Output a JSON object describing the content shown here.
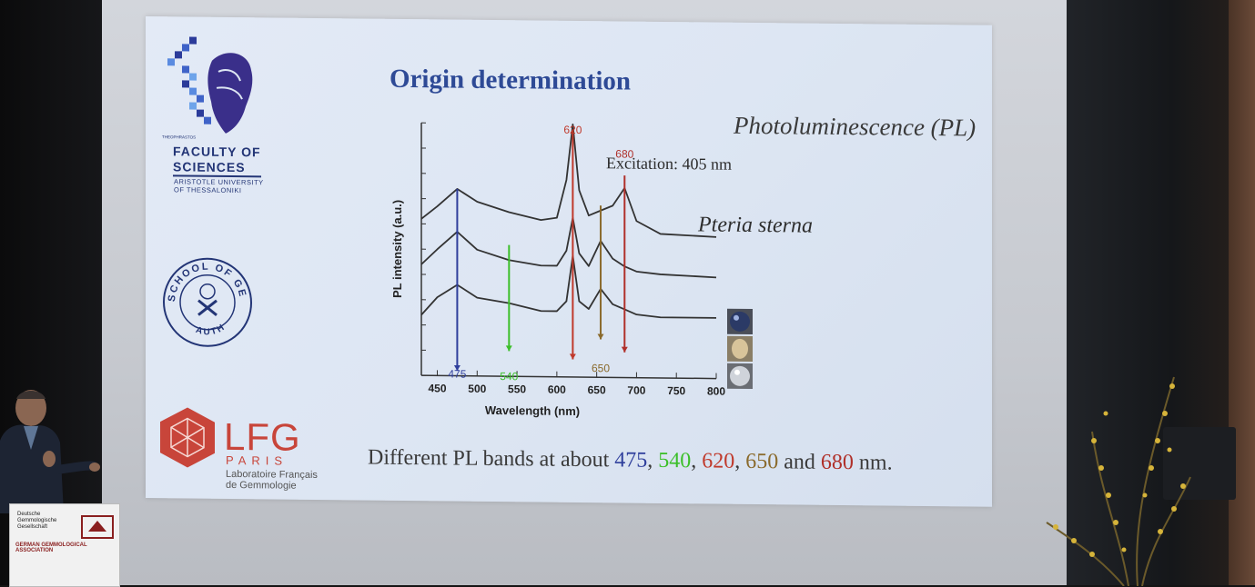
{
  "slide": {
    "title": "Origin determination",
    "method": "Photoluminescence (PL)",
    "excitation": "Excitation: 405 nm",
    "species": "Pteria sterna",
    "summary": {
      "prefix": "Different PL bands at about ",
      "b475": "475",
      "b540": "540",
      "b620": "620",
      "b650": "650",
      "b680": "680",
      "sep1": ", ",
      "sep2": ", ",
      "sep3": ", ",
      "and": " and ",
      "suffix": " nm."
    },
    "logos": {
      "faculty_line1": "FACULTY OF",
      "faculty_line2": "SCIENCES",
      "university_line1": "ARISTOTLE UNIVERSITY",
      "university_line2": "OF THESSALONIKI",
      "theophrastos": "THEOPHRASTOS",
      "school_ring": "SCHOOL OF GEOLOGY",
      "school_bottom": "AUTH",
      "lfg": "LFG",
      "lfg_paris": "PARIS",
      "lfg_sub1": "Laboratoire Français",
      "lfg_sub2": "de Gemmologie"
    },
    "colors": {
      "title": "#2e4a96",
      "band_475": "#2f3f9c",
      "band_540": "#3cbf2a",
      "band_620": "#c0392b",
      "band_650": "#8a6a2c",
      "band_680": "#b0302a"
    }
  },
  "chart_data": {
    "type": "line",
    "xlabel": "Wavelength (nm)",
    "ylabel": "PL intensity (a.u.)",
    "xlim": [
      430,
      800
    ],
    "xticks": [
      450,
      500,
      550,
      600,
      650,
      700,
      750,
      800
    ],
    "band_labels": [
      "475",
      "540",
      "620",
      "650",
      "680"
    ],
    "series": [
      {
        "x": [
          430,
          450,
          475,
          500,
          540,
          580,
          600,
          612,
          620,
          628,
          640,
          655,
          670,
          685,
          700,
          730,
          800
        ],
        "y": [
          0.62,
          0.67,
          0.74,
          0.69,
          0.65,
          0.62,
          0.63,
          0.78,
          1.0,
          0.74,
          0.64,
          0.66,
          0.68,
          0.75,
          0.62,
          0.57,
          0.56
        ]
      },
      {
        "x": [
          430,
          450,
          475,
          500,
          540,
          580,
          600,
          612,
          620,
          628,
          640,
          655,
          670,
          685,
          700,
          730,
          800
        ],
        "y": [
          0.44,
          0.5,
          0.57,
          0.5,
          0.46,
          0.44,
          0.44,
          0.5,
          0.63,
          0.49,
          0.44,
          0.54,
          0.47,
          0.44,
          0.42,
          0.41,
          0.4
        ]
      },
      {
        "x": [
          430,
          450,
          475,
          500,
          540,
          580,
          600,
          612,
          620,
          628,
          640,
          655,
          670,
          685,
          700,
          730,
          800
        ],
        "y": [
          0.24,
          0.31,
          0.36,
          0.31,
          0.29,
          0.26,
          0.26,
          0.3,
          0.48,
          0.3,
          0.27,
          0.35,
          0.29,
          0.27,
          0.25,
          0.24,
          0.24
        ]
      }
    ]
  },
  "podium": {
    "line1": "Deutsche",
    "line2": "Gemmologische",
    "line3": "Gesellschaft",
    "association": "GERMAN GEMMOLOGICAL ASSOCIATION"
  }
}
